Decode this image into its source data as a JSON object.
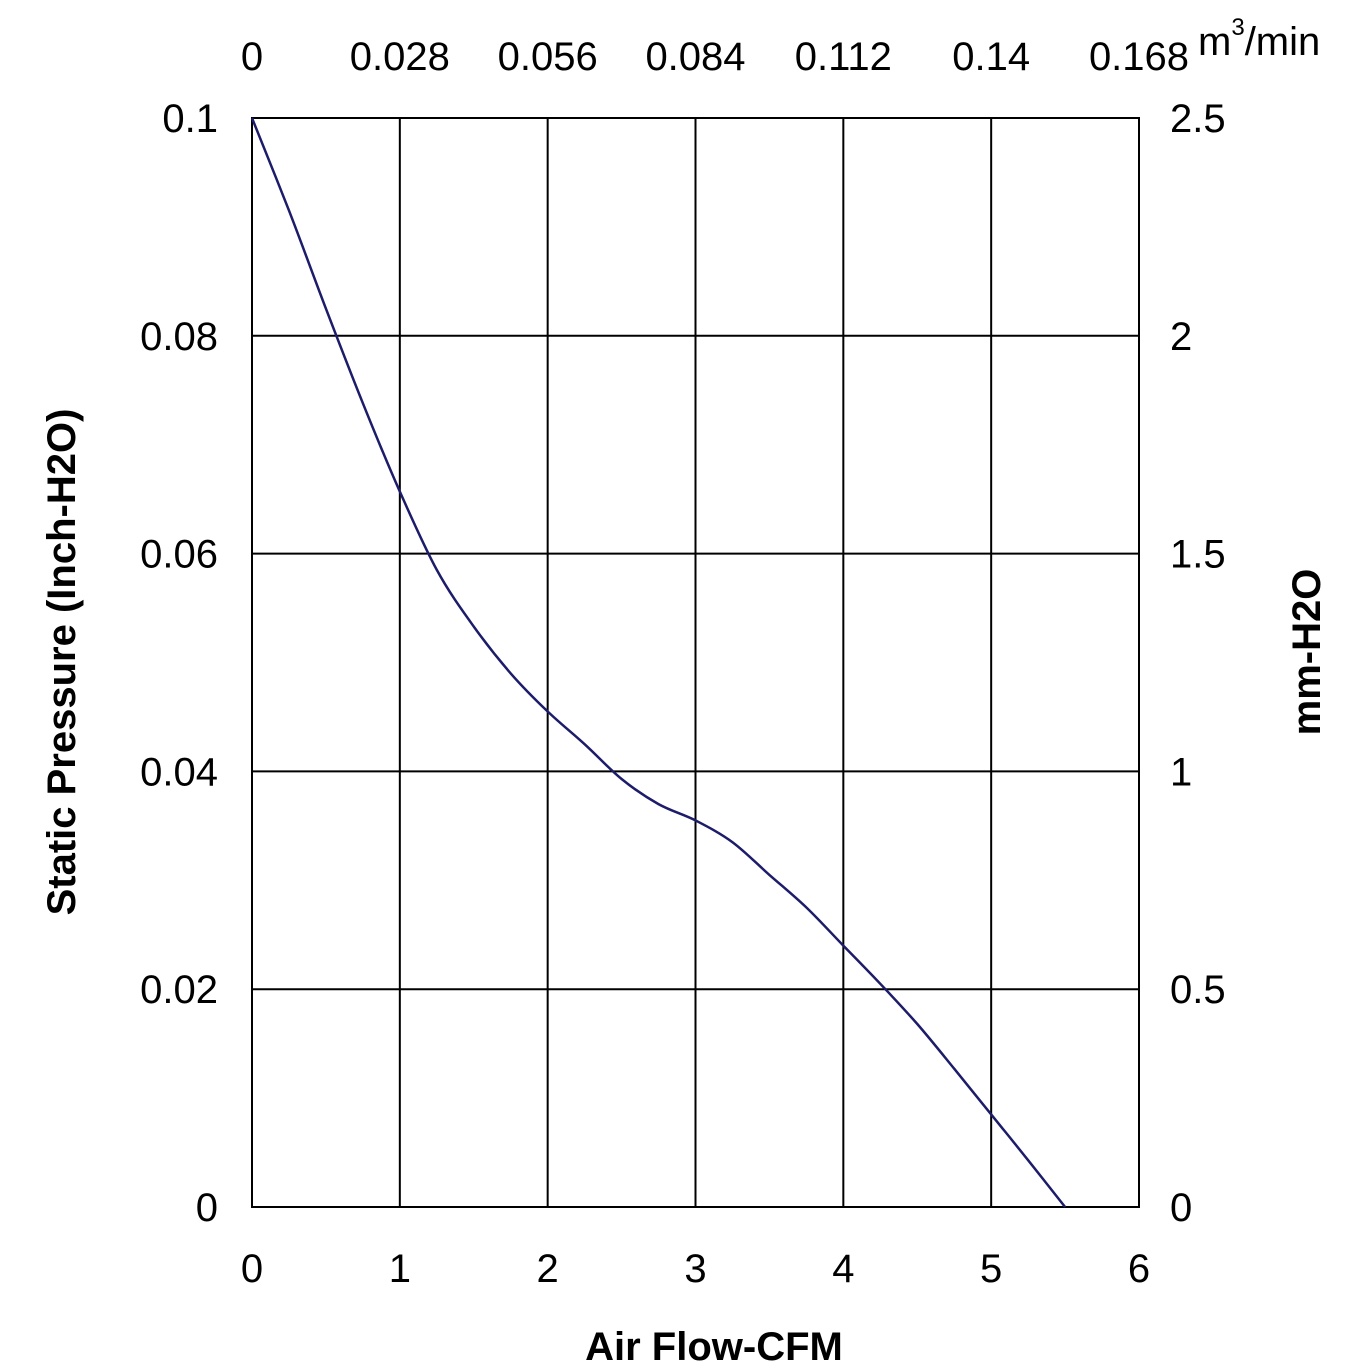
{
  "chart_data": {
    "type": "line",
    "title": "",
    "xlabel": "Air Flow-CFM",
    "ylabel": "Static Pressure (Inch-H2O)",
    "x_ticks": [
      "0",
      "1",
      "2",
      "3",
      "4",
      "5",
      "6"
    ],
    "y_ticks": [
      "0",
      "0.02",
      "0.04",
      "0.06",
      "0.08",
      "0.1"
    ],
    "x2_ticks": [
      "0",
      "0.028",
      "0.056",
      "0.084",
      "0.112",
      "0.14",
      "0.168"
    ],
    "x2_unit": {
      "base": "m",
      "sup": "3",
      "rest": "/min"
    },
    "y2_ticks": [
      "0",
      "0.5",
      "1",
      "1.5",
      "2",
      "2.5"
    ],
    "y2label": "mm-H2O",
    "xlim": [
      0,
      6
    ],
    "ylim": [
      0,
      0.1
    ],
    "grid": true,
    "line_color": "#1c1c6b",
    "series": [
      {
        "name": "",
        "x": [
          0,
          0.25,
          0.5,
          0.75,
          1.0,
          1.25,
          1.5,
          1.75,
          2.0,
          2.25,
          2.5,
          2.75,
          3.0,
          3.25,
          3.5,
          3.75,
          4.0,
          4.25,
          4.5,
          4.75,
          5.0,
          5.25,
          5.5
        ],
        "y": [
          0.1,
          0.0915,
          0.0825,
          0.0738,
          0.0657,
          0.0585,
          0.0533,
          0.049,
          0.0455,
          0.0425,
          0.0393,
          0.037,
          0.0355,
          0.0335,
          0.0305,
          0.0275,
          0.024,
          0.0205,
          0.0168,
          0.0127,
          0.0085,
          0.0043,
          0.0
        ]
      }
    ]
  }
}
